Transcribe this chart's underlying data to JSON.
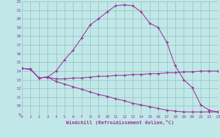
{
  "xlabel": "Windchill (Refroidissement éolien,°C)",
  "xlim": [
    0,
    23
  ],
  "ylim": [
    9,
    22
  ],
  "xticks": [
    0,
    1,
    2,
    3,
    4,
    5,
    6,
    7,
    8,
    9,
    10,
    11,
    12,
    13,
    14,
    15,
    16,
    17,
    18,
    19,
    20,
    21,
    22,
    23
  ],
  "yticks": [
    9,
    10,
    11,
    12,
    13,
    14,
    15,
    16,
    17,
    18,
    19,
    20,
    21,
    22
  ],
  "bg_color": "#c0e8e8",
  "line_color": "#993399",
  "grid_color": "#99bbbb",
  "line1_x": [
    0,
    1,
    2,
    3,
    4,
    5,
    6,
    7,
    8,
    9,
    10,
    11,
    12,
    13,
    14,
    15,
    16,
    17,
    18,
    19,
    20,
    21,
    22,
    23
  ],
  "line1_y": [
    14.3,
    14.2,
    13.2,
    13.3,
    14.0,
    15.3,
    16.4,
    17.8,
    19.3,
    20.0,
    20.8,
    21.5,
    21.6,
    21.5,
    20.8,
    19.5,
    19.0,
    17.3,
    14.6,
    13.0,
    12.1,
    10.1,
    9.5,
    9.3
  ],
  "line2_x": [
    0,
    1,
    2,
    3,
    4,
    5,
    6,
    7,
    8,
    9,
    10,
    11,
    12,
    13,
    14,
    15,
    16,
    17,
    18,
    19,
    20,
    21,
    22,
    23
  ],
  "line2_y": [
    14.3,
    14.2,
    13.2,
    13.3,
    13.1,
    13.1,
    13.2,
    13.2,
    13.3,
    13.4,
    13.4,
    13.5,
    13.5,
    13.6,
    13.6,
    13.7,
    13.7,
    13.8,
    13.8,
    13.9,
    13.9,
    14.0,
    14.0,
    14.0
  ],
  "line3_x": [
    0,
    1,
    2,
    3,
    4,
    5,
    6,
    7,
    8,
    9,
    10,
    11,
    12,
    13,
    14,
    15,
    16,
    17,
    18,
    19,
    20,
    21,
    22,
    23
  ],
  "line3_y": [
    14.3,
    14.2,
    13.2,
    13.3,
    12.8,
    12.5,
    12.2,
    11.9,
    11.6,
    11.3,
    11.1,
    10.8,
    10.6,
    10.3,
    10.1,
    9.9,
    9.7,
    9.5,
    9.4,
    9.3,
    9.3,
    9.3,
    9.3,
    9.3
  ]
}
